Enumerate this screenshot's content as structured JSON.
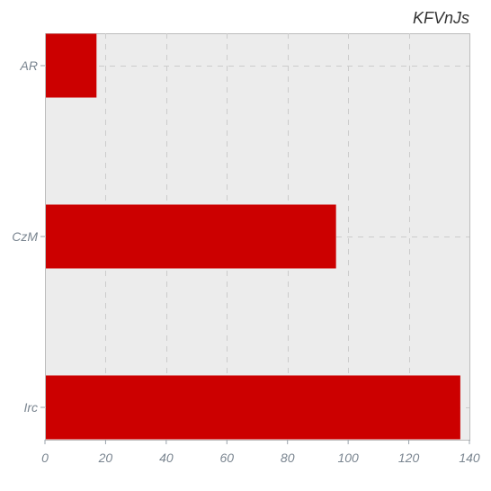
{
  "chart_data": {
    "type": "bar",
    "orientation": "horizontal",
    "title": "KFVnJs",
    "xlabel": "",
    "ylabel": "",
    "categories": [
      "AR",
      "CzM",
      "Irc"
    ],
    "values": [
      17,
      96,
      137
    ],
    "xlim": [
      0,
      140
    ],
    "xticks": [
      0,
      20,
      40,
      60,
      80,
      100,
      120,
      140
    ],
    "grid": true,
    "legend": "none",
    "bar_color": "#cc0000",
    "background_color": "#ececec"
  }
}
